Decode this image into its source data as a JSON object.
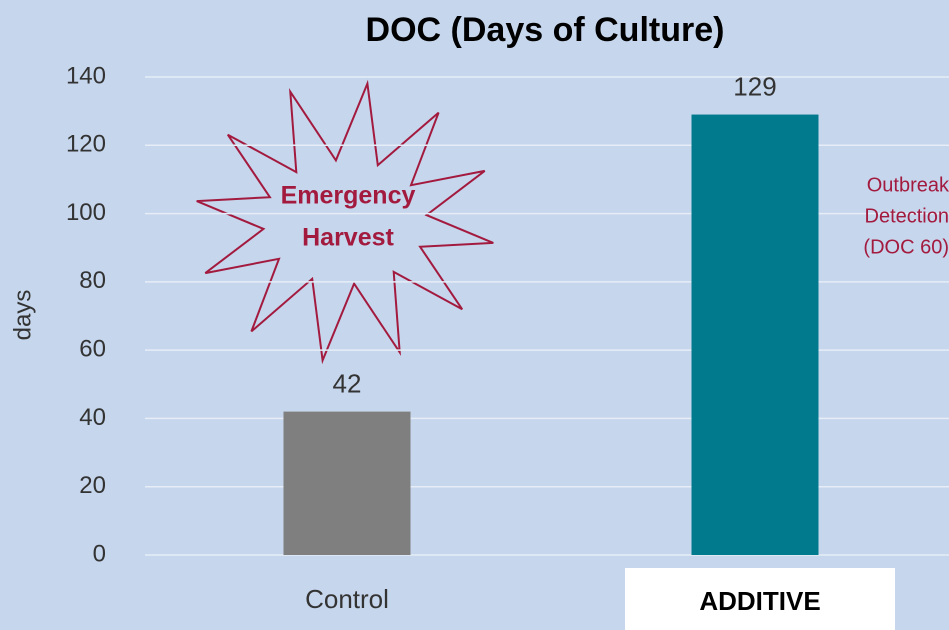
{
  "chart_data": {
    "type": "bar",
    "title": "DOC (Days of Culture)",
    "y_label": "days",
    "categories": [
      "Control",
      "ADDITIVE"
    ],
    "values": [
      42,
      129
    ],
    "colors": [
      "#7f7f7f",
      "#007a8c"
    ],
    "ylim": [
      0,
      140
    ],
    "yticks": [
      0,
      20,
      40,
      60,
      80,
      100,
      120,
      140
    ],
    "grid": true,
    "annotations": [
      [
        "Emergency",
        "Harvest"
      ],
      [
        "Outbreak",
        "Detection",
        "(DOC 60)"
      ]
    ]
  }
}
